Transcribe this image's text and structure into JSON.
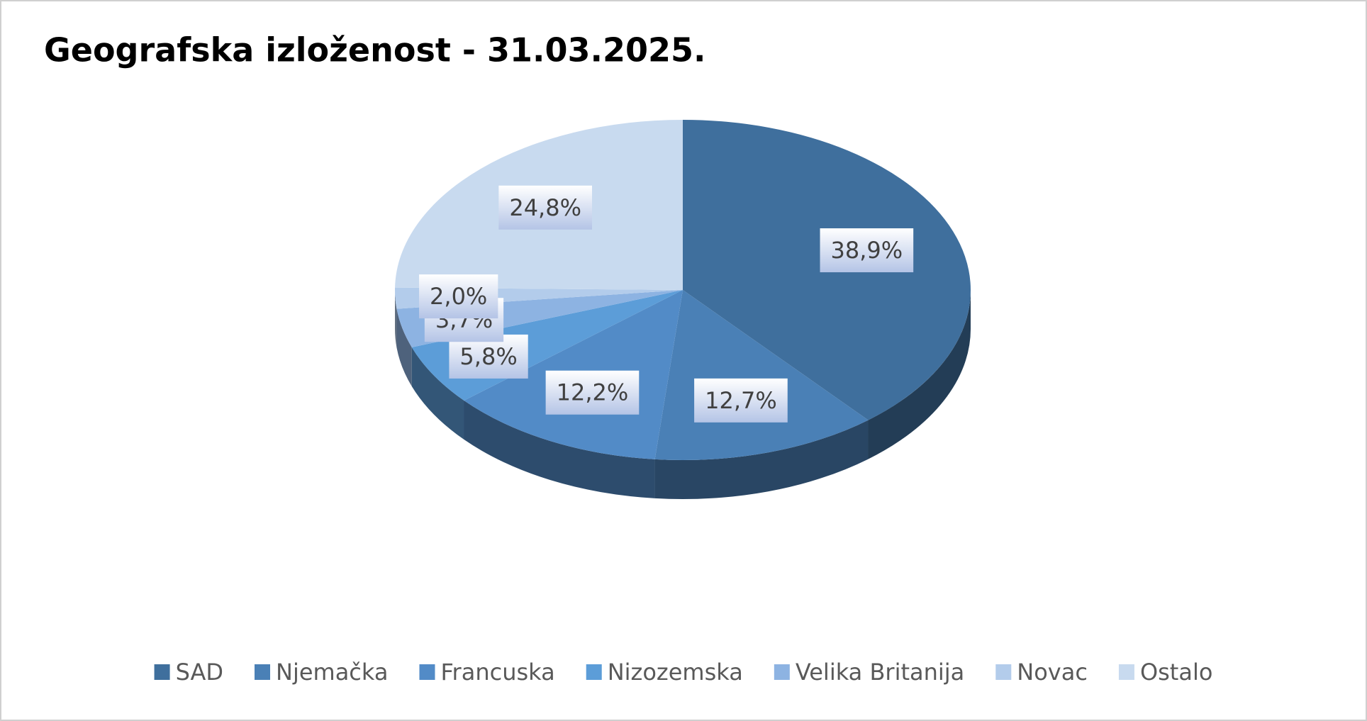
{
  "chart_data": {
    "type": "pie",
    "title": "Geografska izloženost - 31.03.2025.",
    "categories": [
      "SAD",
      "Njemačka",
      "Francuska",
      "Nizozemska",
      "Velika Britanija",
      "Novac",
      "Ostalo"
    ],
    "values": [
      38.9,
      12.7,
      12.2,
      5.8,
      3.7,
      2.0,
      24.8
    ],
    "value_labels": [
      "38,9%",
      "12,7%",
      "12,2%",
      "5,8%",
      "3,7%",
      "2,0%",
      "24,8%"
    ],
    "colors": [
      "#3f6f9d",
      "#4a80b6",
      "#528bc7",
      "#5c9dd8",
      "#8db3e2",
      "#b3cceb",
      "#c8daef"
    ],
    "legend": "bottom"
  }
}
